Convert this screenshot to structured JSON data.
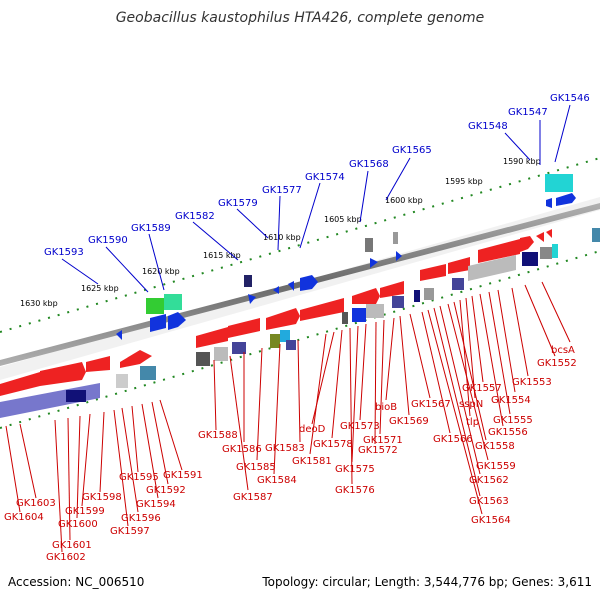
{
  "title": "Geobacillus kaustophilus HTA426, complete genome",
  "accession": "Accession: NC_006510",
  "topology": "Topology: circular; Length: 3,544,776 bp; Genes: 3,611",
  "colors": {
    "top_labels": "#0000cc",
    "bottom_labels": "#cc0000",
    "backbone": "#8a8a8a",
    "tick": "#228822"
  },
  "kbp_labels": [
    "1590 kbp",
    "1595 kbp",
    "1600 kbp",
    "1605 kbp",
    "1610 kbp",
    "1615 kbp",
    "1620 kbp",
    "1625 kbp",
    "1630 kbp"
  ],
  "top_labels": [
    "GK1546",
    "GK1547",
    "GK1548",
    "GK1565",
    "GK1568",
    "GK1574",
    "GK1577",
    "GK1579",
    "GK1582",
    "GK1589",
    "GK1590",
    "GK1593"
  ],
  "bottom_labels": [
    "bcsA",
    "GK1552",
    "GK1553",
    "GK1554",
    "GK1555",
    "GK1556",
    "GK1557",
    "sspN",
    "tlp",
    "GK1558",
    "GK1559",
    "GK1562",
    "GK1563",
    "GK1564",
    "GK1566",
    "GK1567",
    "GK1569",
    "bioB",
    "GK1571",
    "GK1572",
    "GK1573",
    "GK1575",
    "GK1576",
    "GK1578",
    "deoD",
    "GK1581",
    "GK1583",
    "GK1584",
    "GK1585",
    "GK1586",
    "GK1587",
    "GK1588",
    "GK1591",
    "GK1592",
    "GK1594",
    "GK1595",
    "GK1596",
    "GK1597",
    "GK1598",
    "GK1599",
    "GK1600",
    "GK1601",
    "GK1602",
    "GK1603",
    "GK1604"
  ]
}
